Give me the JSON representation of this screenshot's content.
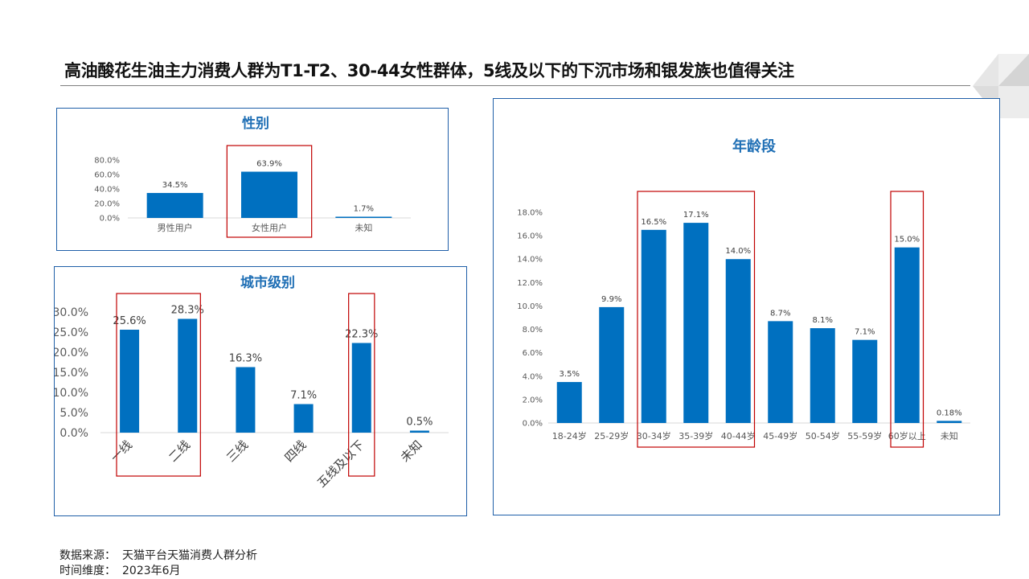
{
  "page": {
    "title": "高油酸花生油主力消费人群为T1-T2、30-44女性群体，5线及以下的下沉市场和银发族也值得关注",
    "footer": {
      "source_label": "数据来源：",
      "source_value": "天猫平台天猫消费人群分析",
      "time_label": "时间维度：",
      "time_value": "2023年6月"
    }
  },
  "colors": {
    "bar": "#0070c0",
    "highlight_box": "#c00000",
    "panel_border": "#1f5fa8",
    "chart_title": "#1f6fb5"
  },
  "chart_data": [
    {
      "id": "gender",
      "type": "bar",
      "title": "性别",
      "categories": [
        "男性用户",
        "女性用户",
        "未知"
      ],
      "values": [
        34.5,
        63.9,
        1.7
      ],
      "labels": [
        "34.5%",
        "63.9%",
        "1.7%"
      ],
      "yticks": [
        "0.0%",
        "20.0%",
        "40.0%",
        "60.0%",
        "80.0%"
      ],
      "ylim": [
        0,
        80
      ],
      "highlight": [
        [
          1,
          1
        ]
      ]
    },
    {
      "id": "city",
      "type": "bar",
      "title": "城市级别",
      "categories": [
        "一线",
        "二线",
        "三线",
        "四线",
        "五线及以下",
        "未知"
      ],
      "values": [
        25.6,
        28.3,
        16.3,
        7.1,
        22.3,
        0.5
      ],
      "labels": [
        "25.6%",
        "28.3%",
        "16.3%",
        "7.1%",
        "22.3%",
        "0.5%"
      ],
      "yticks": [
        "0.0%",
        "5.0%",
        "10.0%",
        "15.0%",
        "20.0%",
        "25.0%",
        "30.0%"
      ],
      "ylim": [
        0,
        30
      ],
      "highlight": [
        [
          0,
          1
        ],
        [
          4,
          4
        ]
      ]
    },
    {
      "id": "age",
      "type": "bar",
      "title": "年龄段",
      "categories": [
        "18-24岁",
        "25-29岁",
        "30-34岁",
        "35-39岁",
        "40-44岁",
        "45-49岁",
        "50-54岁",
        "55-59岁",
        "60岁以上",
        "未知"
      ],
      "values": [
        3.5,
        9.9,
        16.5,
        17.1,
        14.0,
        8.7,
        8.1,
        7.1,
        15.0,
        0.18
      ],
      "labels": [
        "3.5%",
        "9.9%",
        "16.5%",
        "17.1%",
        "14.0%",
        "8.7%",
        "8.1%",
        "7.1%",
        "15.0%",
        "0.18%"
      ],
      "yticks": [
        "0.0%",
        "2.0%",
        "4.0%",
        "6.0%",
        "8.0%",
        "10.0%",
        "12.0%",
        "14.0%",
        "16.0%",
        "18.0%"
      ],
      "ylim": [
        0,
        18
      ],
      "highlight": [
        [
          2,
          4
        ],
        [
          8,
          8
        ]
      ]
    }
  ]
}
